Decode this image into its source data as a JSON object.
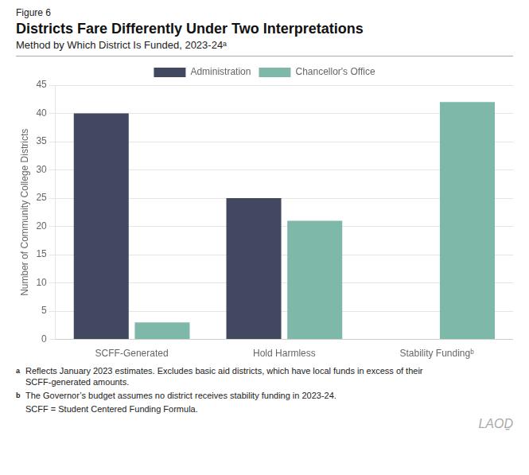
{
  "chart_data": {
    "type": "bar",
    "title": "Districts Fare Differently Under Two Interpretations",
    "subtitle": "Method by Which District Is Funded, 2023-24ᵃ",
    "ylabel": "Number of Community College Districts",
    "annotations": [
      "Figure 6",
      "a",
      "Reflects January 2023 estimates. Excludes basic aid districts, which have local funds in excess of their\nSCFF-generated amounts.",
      "b",
      "The Governor’s budget assumes no district receives stability funding in 2023-24.",
      "SCFF = Student Centered Funding Formula.",
      "LAOḎ"
    ],
    "categories": [
      "SCFF-Generated",
      "Hold Harmless",
      "Stability Fundingᵇ"
    ],
    "series": [
      {
        "name": "Administration",
        "color": "#424860",
        "values": [
          40,
          25,
          0
        ]
      },
      {
        "name": "Chancellor's Office",
        "color": "#7db8a8",
        "values": [
          3,
          21,
          42
        ]
      }
    ],
    "ylim": [
      0,
      45
    ],
    "yticks": [
      0,
      5,
      10,
      15,
      20,
      25,
      30,
      35,
      40,
      45
    ],
    "grid": true,
    "legend": "top"
  }
}
